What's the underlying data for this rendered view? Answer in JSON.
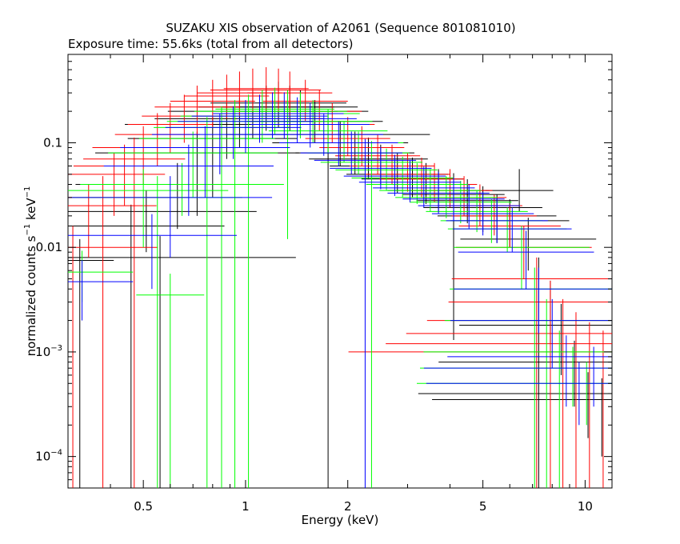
{
  "chart_data": {
    "type": "scatter",
    "title": "SUZAKU XIS observation of A2061 (Sequence 801081010)",
    "subtitle": "Exposure time: 55.6ks (total from all detectors)",
    "xlabel": "Energy (keV)",
    "ylabel_main": "normalized counts s",
    "ylabel_sup1": "−1",
    "ylabel_mid": " keV",
    "ylabel_sup2": "−1",
    "x_scale": "log",
    "y_scale": "log",
    "xlim": [
      0.3,
      12
    ],
    "ylim": [
      5e-05,
      0.7
    ],
    "x_ticks": [
      {
        "value": 0.5,
        "label": "0.5"
      },
      {
        "value": 1,
        "label": "1"
      },
      {
        "value": 2,
        "label": "2"
      },
      {
        "value": 5,
        "label": "5"
      },
      {
        "value": 10,
        "label": "10"
      }
    ],
    "y_ticks": [
      {
        "value": 0.1,
        "label": "0.1",
        "mant": "",
        "exp": ""
      },
      {
        "value": 0.01,
        "label": "0.01",
        "mant": "",
        "exp": ""
      },
      {
        "value": 0.001,
        "label": "",
        "mant": "10",
        "exp": "−3"
      },
      {
        "value": 0.0001,
        "label": "",
        "mant": "10",
        "exp": "−4"
      }
    ],
    "grid": false,
    "legend": "none",
    "series": [
      {
        "color": "#000000",
        "points": [
          [
            0.325,
            0.0075,
            0.2,
            5e-05
          ],
          [
            0.46,
            0.016,
            0.55,
            5e-05
          ],
          [
            0.51,
            0.022,
            0.65,
            0.009
          ],
          [
            0.56,
            0.008,
            0.8,
            5e-05
          ],
          [
            0.63,
            0.04,
            0.6,
            0.015
          ],
          [
            0.72,
            0.08,
            0.6,
            0.02
          ],
          [
            0.8,
            0.11,
            0.5,
            0.03
          ],
          [
            0.88,
            0.15,
            0.6,
            0.07
          ],
          [
            0.96,
            0.17,
            0.5,
            0.09
          ],
          [
            1.05,
            0.2,
            0.5,
            0.11
          ],
          [
            1.15,
            0.22,
            0.4,
            0.13
          ],
          [
            1.25,
            0.24,
            0.4,
            0.14
          ],
          [
            1.35,
            0.22,
            0.4,
            0.13
          ],
          [
            1.45,
            0.2,
            0.4,
            0.12
          ],
          [
            1.6,
            0.16,
            0.4,
            0.1
          ],
          [
            1.75,
            0.12,
            0.6,
            5e-05
          ],
          [
            1.9,
            0.1,
            0.4,
            0.06
          ],
          [
            2.1,
            0.08,
            0.35,
            0.05
          ],
          [
            2.3,
            0.07,
            0.35,
            0.045
          ],
          [
            2.5,
            0.06,
            0.3,
            0.04
          ],
          [
            2.8,
            0.05,
            0.3,
            0.033
          ],
          [
            3.1,
            0.045,
            0.3,
            0.03
          ],
          [
            3.4,
            0.04,
            0.3,
            0.026
          ],
          [
            3.7,
            0.035,
            0.3,
            0.022
          ],
          [
            4.1,
            0.032,
            0.3,
            0.0013
          ],
          [
            4.5,
            0.028,
            0.3,
            0.017
          ],
          [
            5.0,
            0.024,
            0.35,
            0.014
          ],
          [
            5.5,
            0.02,
            0.35,
            0.011
          ],
          [
            6.0,
            0.018,
            0.35,
            0.01
          ],
          [
            6.4,
            0.035,
            0.2,
            0.022
          ],
          [
            6.8,
            0.012,
            0.4,
            0.006
          ],
          [
            7.3,
            0.005,
            0.5,
            5e-05
          ],
          [
            7.9,
            0.003,
            0.5,
            0.0012
          ],
          [
            8.5,
            0.0018,
            0.6,
            0.0006
          ],
          [
            9.3,
            0.0008,
            0.8,
            0.0003
          ],
          [
            10.2,
            0.0004,
            1.0,
            0.00015
          ],
          [
            11.2,
            0.00035,
            1.0,
            0.0001
          ]
        ]
      },
      {
        "color": "#ff0000",
        "points": [
          [
            0.31,
            0.01,
            0.5,
            5e-05
          ],
          [
            0.345,
            0.025,
            0.4,
            0.008
          ],
          [
            0.38,
            0.03,
            0.5,
            5e-05
          ],
          [
            0.41,
            0.05,
            0.3,
            0.02
          ],
          [
            0.44,
            0.06,
            0.3,
            0.025
          ],
          [
            0.47,
            0.07,
            0.3,
            5e-05
          ],
          [
            0.5,
            0.09,
            0.3,
            0.04
          ],
          [
            0.55,
            0.12,
            0.25,
            0.06
          ],
          [
            0.6,
            0.15,
            0.25,
            0.08
          ],
          [
            0.66,
            0.18,
            0.25,
            0.1
          ],
          [
            0.72,
            0.22,
            0.25,
            0.12
          ],
          [
            0.8,
            0.25,
            0.25,
            0.14
          ],
          [
            0.88,
            0.28,
            0.25,
            0.17
          ],
          [
            0.96,
            0.3,
            0.25,
            0.18
          ],
          [
            1.05,
            0.32,
            0.25,
            0.2
          ],
          [
            1.15,
            0.33,
            0.25,
            0.2
          ],
          [
            1.25,
            0.32,
            0.25,
            0.2
          ],
          [
            1.35,
            0.3,
            0.25,
            0.18
          ],
          [
            1.5,
            0.25,
            0.25,
            0.16
          ],
          [
            1.65,
            0.2,
            0.25,
            0.13
          ],
          [
            1.8,
            0.15,
            0.25,
            0.1
          ],
          [
            2.0,
            0.11,
            0.25,
            0.075
          ],
          [
            2.2,
            0.09,
            0.25,
            0.06
          ],
          [
            2.45,
            0.075,
            0.25,
            0.05
          ],
          [
            2.7,
            0.06,
            0.25,
            0.04
          ],
          [
            3.0,
            0.05,
            0.25,
            0.034
          ],
          [
            3.3,
            0.045,
            0.25,
            0.03
          ],
          [
            3.6,
            0.04,
            0.25,
            0.027
          ],
          [
            4.0,
            0.035,
            0.25,
            0.024
          ],
          [
            4.4,
            0.03,
            0.25,
            0.02
          ],
          [
            4.9,
            0.025,
            0.25,
            0.016
          ],
          [
            5.4,
            0.02,
            0.25,
            0.013
          ],
          [
            6.0,
            0.016,
            0.3,
            0.01
          ],
          [
            6.6,
            0.01,
            0.4,
            0.005
          ],
          [
            7.2,
            0.005,
            0.5,
            5e-05
          ],
          [
            7.9,
            0.003,
            0.6,
            5e-05
          ],
          [
            8.6,
            0.002,
            0.8,
            5e-05
          ],
          [
            9.4,
            0.0015,
            1.0,
            5e-05
          ],
          [
            10.3,
            0.0012,
            1.2,
            5e-05
          ],
          [
            11.3,
            0.001,
            1.5,
            5e-05
          ]
        ]
      },
      {
        "color": "#00ff00",
        "points": [
          [
            0.33,
            0.0058,
            0.3,
            0.003
          ],
          [
            0.5,
            0.035,
            0.5,
            0.01
          ],
          [
            0.55,
            0.03,
            0.5,
            5e-05
          ],
          [
            0.6,
            0.0035,
            0.2,
            5e-05
          ],
          [
            0.65,
            0.04,
            0.6,
            0.02
          ],
          [
            0.7,
            0.08,
            0.5,
            0.03
          ],
          [
            0.77,
            0.11,
            0.4,
            5e-05
          ],
          [
            0.85,
            0.14,
            0.4,
            5e-05
          ],
          [
            0.93,
            0.16,
            0.4,
            5e-05
          ],
          [
            1.02,
            0.18,
            0.4,
            5e-05
          ],
          [
            1.12,
            0.2,
            0.4,
            0.1
          ],
          [
            1.22,
            0.21,
            0.35,
            0.12
          ],
          [
            1.33,
            0.2,
            0.35,
            0.012
          ],
          [
            1.45,
            0.19,
            0.35,
            0.11
          ],
          [
            1.58,
            0.16,
            0.35,
            0.1
          ],
          [
            1.75,
            0.13,
            0.35,
            0.08
          ],
          [
            1.95,
            0.1,
            0.35,
            0.065
          ],
          [
            2.15,
            0.08,
            0.3,
            0.05
          ],
          [
            2.35,
            0.065,
            0.3,
            5e-05
          ],
          [
            2.6,
            0.055,
            0.3,
            0.035
          ],
          [
            2.9,
            0.046,
            0.3,
            0.03
          ],
          [
            3.2,
            0.04,
            0.3,
            0.026
          ],
          [
            3.5,
            0.035,
            0.3,
            0.022
          ],
          [
            3.9,
            0.03,
            0.3,
            0.019
          ],
          [
            4.3,
            0.027,
            0.3,
            0.017
          ],
          [
            4.8,
            0.022,
            0.3,
            0.014
          ],
          [
            5.3,
            0.018,
            0.3,
            0.011
          ],
          [
            5.9,
            0.015,
            0.35,
            0.009
          ],
          [
            6.5,
            0.01,
            0.4,
            0.004
          ],
          [
            7.1,
            0.004,
            0.5,
            5e-05
          ],
          [
            7.7,
            0.002,
            0.6,
            5e-05
          ],
          [
            8.4,
            0.001,
            0.8,
            5e-05
          ],
          [
            9.2,
            0.0007,
            0.9,
            0.0003
          ],
          [
            10.1,
            0.0005,
            1.0,
            0.0002
          ]
        ]
      },
      {
        "color": "#0000ff",
        "points": [
          [
            0.33,
            0.0047,
            0.3,
            0.002
          ],
          [
            0.53,
            0.013,
            0.5,
            0.004
          ],
          [
            0.6,
            0.03,
            0.6,
            0.008
          ],
          [
            0.68,
            0.06,
            0.5,
            0.02
          ],
          [
            0.76,
            0.09,
            0.5,
            0.03
          ],
          [
            0.84,
            0.12,
            0.4,
            0.05
          ],
          [
            0.92,
            0.14,
            0.4,
            0.07
          ],
          [
            1.0,
            0.16,
            0.4,
            0.08
          ],
          [
            1.1,
            0.18,
            0.4,
            0.1
          ],
          [
            1.2,
            0.19,
            0.35,
            0.11
          ],
          [
            1.3,
            0.19,
            0.35,
            0.11
          ],
          [
            1.42,
            0.17,
            0.35,
            0.1
          ],
          [
            1.55,
            0.15,
            0.35,
            0.09
          ],
          [
            1.7,
            0.12,
            0.35,
            0.075
          ],
          [
            1.88,
            0.1,
            0.35,
            0.06
          ],
          [
            2.05,
            0.08,
            0.3,
            0.05
          ],
          [
            2.25,
            0.068,
            0.3,
            5e-05
          ],
          [
            2.5,
            0.057,
            0.3,
            0.036
          ],
          [
            2.75,
            0.048,
            0.3,
            0.031
          ],
          [
            3.05,
            0.042,
            0.3,
            0.027
          ],
          [
            3.35,
            0.037,
            0.3,
            0.024
          ],
          [
            3.7,
            0.033,
            0.3,
            0.021
          ],
          [
            4.1,
            0.029,
            0.3,
            0.018
          ],
          [
            4.55,
            0.025,
            0.3,
            0.015
          ],
          [
            5.0,
            0.021,
            0.3,
            0.013
          ],
          [
            5.5,
            0.018,
            0.3,
            0.011
          ],
          [
            6.1,
            0.015,
            0.35,
            0.009
          ],
          [
            6.7,
            0.009,
            0.4,
            0.004
          ],
          [
            7.3,
            0.004,
            0.5,
            0.0015
          ],
          [
            8.0,
            0.002,
            0.6,
            0.0007
          ],
          [
            8.8,
            0.0009,
            0.7,
            0.0003
          ],
          [
            9.6,
            0.0005,
            0.9,
            0.0002
          ],
          [
            10.6,
            0.0007,
            1.0,
            0.0003
          ]
        ]
      }
    ]
  }
}
